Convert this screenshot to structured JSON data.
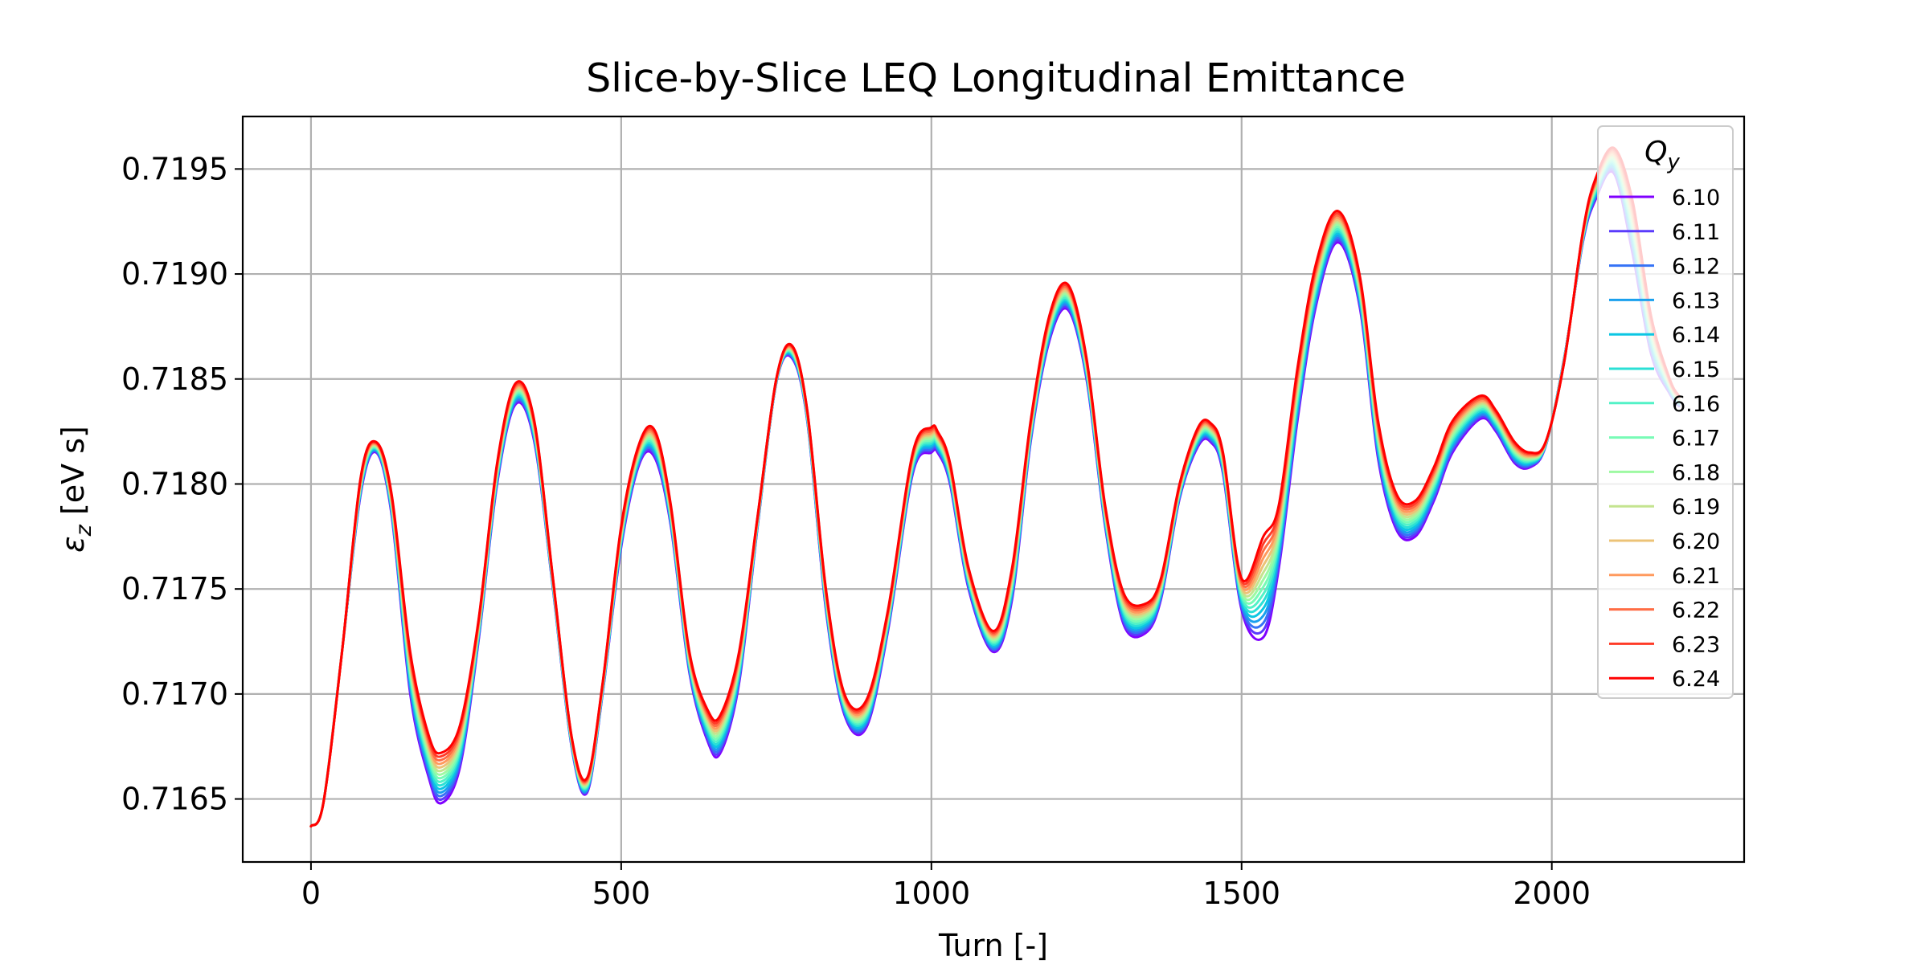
{
  "chart_data": {
    "type": "line",
    "title": "Slice-by-Slice LEQ Longitudinal Emittance",
    "xlabel": "Turn [-]",
    "ylabel": "εz [eV s]",
    "ylabel_main": "ε",
    "ylabel_sub": "z",
    "ylabel_rest": " [eV s]",
    "xlim": [
      -110,
      2310
    ],
    "ylim": [
      0.7162,
      0.71975
    ],
    "xticks": [
      0,
      500,
      1000,
      1500,
      2000
    ],
    "xtick_labels": [
      "0",
      "500",
      "1000",
      "1500",
      "2000"
    ],
    "yticks": [
      0.7165,
      0.717,
      0.7175,
      0.718,
      0.7185,
      0.719,
      0.7195
    ],
    "ytick_labels": [
      "0.7165",
      "0.7170",
      "0.7175",
      "0.7180",
      "0.7185",
      "0.7190",
      "0.7195"
    ],
    "grid": true,
    "legend": {
      "placement": "top-right",
      "title_main": "Q",
      "title_sub": "y"
    },
    "series": [
      {
        "name": "6.10",
        "color": "#8000ff"
      },
      {
        "name": "6.11",
        "color": "#5a3bfc"
      },
      {
        "name": "6.12",
        "color": "#3673f6"
      },
      {
        "name": "6.13",
        "color": "#1aa0ee"
      },
      {
        "name": "6.14",
        "color": "#0cc6e3"
      },
      {
        "name": "6.15",
        "color": "#2be0d6"
      },
      {
        "name": "6.16",
        "color": "#52f2c7"
      },
      {
        "name": "6.17",
        "color": "#78fbb6"
      },
      {
        "name": "6.18",
        "color": "#9ef9a3"
      },
      {
        "name": "6.19",
        "color": "#c4e48f"
      },
      {
        "name": "6.20",
        "color": "#ecc377"
      },
      {
        "name": "6.21",
        "color": "#ff9a5e"
      },
      {
        "name": "6.22",
        "color": "#ff6d45"
      },
      {
        "name": "6.23",
        "color": "#ff3c28"
      },
      {
        "name": "6.24",
        "color": "#ff0000"
      }
    ],
    "x_points": [
      0,
      20,
      50,
      80,
      105,
      130,
      160,
      190,
      210,
      240,
      270,
      300,
      330,
      360,
      390,
      420,
      445,
      470,
      500,
      530,
      555,
      580,
      610,
      640,
      660,
      690,
      720,
      750,
      775,
      800,
      830,
      860,
      895,
      930,
      970,
      1000,
      1010,
      1030,
      1060,
      1100,
      1130,
      1160,
      1190,
      1220,
      1250,
      1280,
      1310,
      1345,
      1370,
      1400,
      1430,
      1450,
      1470,
      1500,
      1535,
      1560,
      1590,
      1620,
      1655,
      1690,
      1720,
      1750,
      1780,
      1810,
      1840,
      1885,
      1910,
      1940,
      1965,
      1990,
      2020,
      2050,
      2070,
      2100,
      2130,
      2160,
      2190,
      2205
    ],
    "y_low": [
      0.71637,
      0.71648,
      0.7172,
      0.71795,
      0.71815,
      0.71785,
      0.717,
      0.7166,
      0.71648,
      0.71665,
      0.71725,
      0.718,
      0.71838,
      0.7182,
      0.7175,
      0.71675,
      0.71653,
      0.717,
      0.7177,
      0.7181,
      0.71812,
      0.7178,
      0.7171,
      0.71677,
      0.71672,
      0.71705,
      0.7178,
      0.71848,
      0.7186,
      0.7183,
      0.7174,
      0.7169,
      0.71684,
      0.7173,
      0.71805,
      0.71815,
      0.71815,
      0.718,
      0.7175,
      0.7172,
      0.71745,
      0.7182,
      0.71868,
      0.71883,
      0.7185,
      0.7178,
      0.71733,
      0.71729,
      0.71745,
      0.71793,
      0.71818,
      0.7182,
      0.71805,
      0.7174,
      0.71727,
      0.7176,
      0.7183,
      0.71885,
      0.71915,
      0.71885,
      0.71812,
      0.71778,
      0.71775,
      0.71792,
      0.71815,
      0.71831,
      0.71825,
      0.7181,
      0.71808,
      0.71818,
      0.7186,
      0.71915,
      0.71935,
      0.71948,
      0.7191,
      0.71862,
      0.71843,
      0.71837
    ],
    "y_high": [
      0.71637,
      0.71648,
      0.7172,
      0.71803,
      0.7182,
      0.71795,
      0.7172,
      0.7168,
      0.71672,
      0.71685,
      0.71735,
      0.7181,
      0.71848,
      0.7183,
      0.71755,
      0.7168,
      0.7166,
      0.71705,
      0.7178,
      0.7182,
      0.71825,
      0.7179,
      0.7172,
      0.71692,
      0.7169,
      0.7172,
      0.71785,
      0.7185,
      0.71866,
      0.71835,
      0.7175,
      0.717,
      0.71697,
      0.7174,
      0.71815,
      0.71827,
      0.71825,
      0.7181,
      0.7176,
      0.7173,
      0.7176,
      0.7183,
      0.7188,
      0.71895,
      0.7186,
      0.7179,
      0.71748,
      0.71743,
      0.71755,
      0.718,
      0.71827,
      0.71829,
      0.71815,
      0.71755,
      0.71775,
      0.7179,
      0.71855,
      0.71905,
      0.7193,
      0.719,
      0.7183,
      0.71795,
      0.71792,
      0.71808,
      0.7183,
      0.71842,
      0.71835,
      0.7182,
      0.71815,
      0.7182,
      0.71858,
      0.7192,
      0.71945,
      0.7196,
      0.71935,
      0.7188,
      0.7185,
      0.71842
    ]
  }
}
